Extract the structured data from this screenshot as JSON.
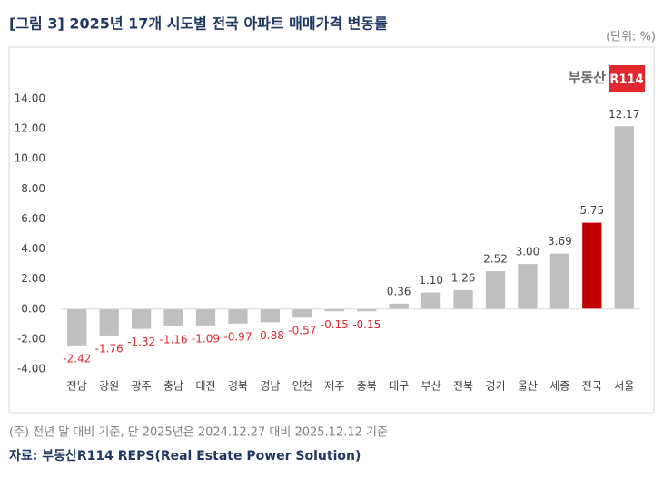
{
  "chart_data": {
    "type": "bar",
    "title": "[그림 3] 2025년 17개 시도별 전국 아파트 매매가격 변동률",
    "unit": "(단위: %)",
    "logo": {
      "text": "부동산",
      "badge": "R114"
    },
    "categories": [
      "전남",
      "강원",
      "광주",
      "충남",
      "대전",
      "경북",
      "경남",
      "인천",
      "제주",
      "충북",
      "대구",
      "부산",
      "전북",
      "경기",
      "울산",
      "세종",
      "전국",
      "서울"
    ],
    "values": [
      -2.42,
      -1.76,
      -1.32,
      -1.16,
      -1.09,
      -0.97,
      -0.88,
      -0.57,
      -0.15,
      -0.15,
      0.36,
      1.1,
      1.26,
      2.52,
      3.0,
      3.69,
      5.75,
      12.17
    ],
    "value_labels": [
      "-2.42",
      "-1.76",
      "-1.32",
      "-1.16",
      "-1.09",
      "-0.97",
      "-0.88",
      "-0.57",
      "-0.15",
      "-0.15",
      "0.36",
      "1.10",
      "1.26",
      "2.52",
      "3.00",
      "3.69",
      "5.75",
      "12.17"
    ],
    "colors": [
      "#bfbfbf",
      "#bfbfbf",
      "#bfbfbf",
      "#bfbfbf",
      "#bfbfbf",
      "#bfbfbf",
      "#bfbfbf",
      "#bfbfbf",
      "#bfbfbf",
      "#bfbfbf",
      "#bfbfbf",
      "#bfbfbf",
      "#bfbfbf",
      "#bfbfbf",
      "#bfbfbf",
      "#bfbfbf",
      "#c00000",
      "#bfbfbf"
    ],
    "ylim": [
      -4,
      14
    ],
    "yticks": [
      {
        "value": -4,
        "label": "-4.00"
      },
      {
        "value": -2,
        "label": "-2.00"
      },
      {
        "value": 0,
        "label": "0.00"
      },
      {
        "value": 2,
        "label": "2.00"
      },
      {
        "value": 4,
        "label": "4.00"
      },
      {
        "value": 6,
        "label": "6.00"
      },
      {
        "value": 8,
        "label": "8.00"
      },
      {
        "value": 10,
        "label": "10.00"
      },
      {
        "value": 12,
        "label": "12.00"
      },
      {
        "value": 14,
        "label": "14.00"
      }
    ],
    "grid": false,
    "footnote": "(주) 전년 말 대비 기준, 단 2025년은 2024.12.27 대비 2025.12.12 기준",
    "source": "자료: 부동산R114 REPS(Real Estate Power Solution)"
  }
}
